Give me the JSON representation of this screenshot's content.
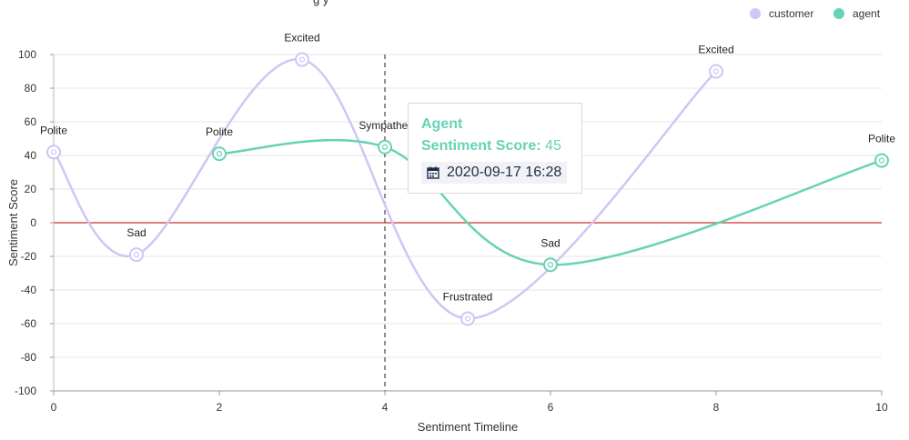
{
  "chart_data": {
    "type": "line",
    "title": "",
    "xlabel": "Sentiment Timeline",
    "ylabel": "Sentiment Score",
    "xlim": [
      0,
      10
    ],
    "ylim": [
      -100,
      100
    ],
    "x_ticks": [
      0,
      2,
      4,
      6,
      8,
      10
    ],
    "y_ticks": [
      -100,
      -80,
      -60,
      -40,
      -20,
      0,
      20,
      40,
      60,
      80,
      100
    ],
    "grid": true,
    "legend_position": "top-right",
    "reference_line": {
      "y": 0,
      "color": "#d9534f"
    },
    "crosshair_x": 4,
    "series": [
      {
        "name": "customer",
        "color": "#cfc6f5",
        "points": [
          {
            "x": 0,
            "y": 42,
            "label": "Polite"
          },
          {
            "x": 1,
            "y": -19,
            "label": "Sad"
          },
          {
            "x": 3,
            "y": 97,
            "label": "Excited"
          },
          {
            "x": 5,
            "y": -57,
            "label": "Frustrated"
          },
          {
            "x": 8,
            "y": 90,
            "label": "Excited"
          }
        ]
      },
      {
        "name": "agent",
        "color": "#67d2b6",
        "points": [
          {
            "x": 2,
            "y": 41,
            "label": "Polite"
          },
          {
            "x": 4,
            "y": 45,
            "label": "Sympathet"
          },
          {
            "x": 6,
            "y": -25,
            "label": "Sad"
          },
          {
            "x": 10,
            "y": 37,
            "label": "Polite"
          }
        ]
      }
    ]
  },
  "tooltip": {
    "title": "Agent",
    "score_label": "Sentiment Score:",
    "score_value": "45",
    "datetime": "2020-09-17 16:28"
  },
  "partial_title_fragment": "g      y"
}
